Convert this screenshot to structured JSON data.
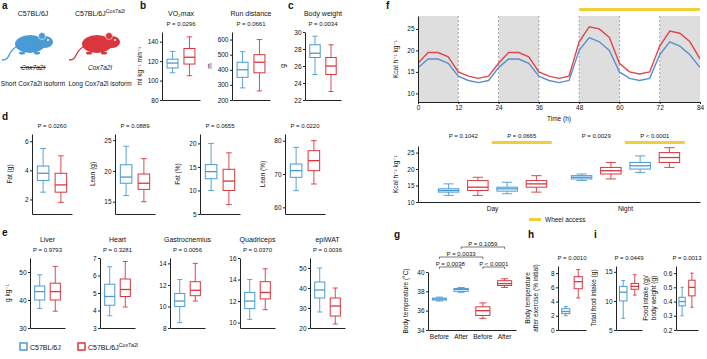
{
  "figure": {
    "panel_labels": [
      "a",
      "b",
      "c",
      "d",
      "e",
      "f",
      "g",
      "h",
      "i"
    ],
    "legend": [
      {
        "name": "C57BL/6J",
        "color": "#4a9ad4"
      },
      {
        "name": "C57BL/6J",
        "superscript": "Cox7a2l",
        "color": "#d9363e"
      }
    ],
    "diagram": [
      {
        "strain": "C57BL/6J",
        "gene": "Cox7a2l",
        "deleted": true,
        "isoform": "Short Cox7a2l isoform",
        "color": "#4a9ad4"
      },
      {
        "strain": "C57BL/6J",
        "superscript": "Cox7a2l",
        "gene": "Cox7a2l",
        "deleted": false,
        "isoform": "Long Cox7a2l isoform",
        "color": "#d9363e"
      }
    ]
  },
  "chart_data": [
    {
      "type": "box",
      "title": "VO₂max",
      "y_label": "ml kg⁻¹ min⁻¹",
      "p_value": "P = 0.0296",
      "ylim": [
        80,
        150
      ],
      "yticks": [
        80,
        100,
        120,
        140
      ],
      "colors": [
        "#4a9ad4",
        "#d9363e"
      ],
      "boxes": [
        {
          "min": 108,
          "q1": 113,
          "median": 118,
          "q3": 122,
          "max": 130
        },
        {
          "min": 105,
          "q1": 117,
          "median": 124,
          "q3": 133,
          "max": 145
        }
      ]
    },
    {
      "type": "box",
      "title": "Run distance",
      "y_label": "m",
      "p_value": "P = 0.0661",
      "ylim": [
        200,
        650
      ],
      "yticks": [
        200,
        300,
        400,
        500,
        600
      ],
      "colors": [
        "#4a9ad4",
        "#d9363e"
      ],
      "boxes": [
        {
          "min": 280,
          "q1": 350,
          "median": 400,
          "q3": 450,
          "max": 520
        },
        {
          "min": 260,
          "q1": 380,
          "median": 450,
          "q3": 500,
          "max": 600
        }
      ]
    },
    {
      "type": "box",
      "title": "Body weight",
      "y_label": "g",
      "p_value": "P = 0.0034",
      "ylim": [
        22,
        30
      ],
      "yticks": [
        22,
        24,
        26,
        28,
        30
      ],
      "colors": [
        "#4a9ad4",
        "#d9363e"
      ],
      "boxes": [
        {
          "min": 25,
          "q1": 27,
          "median": 27.5,
          "q3": 28.5,
          "max": 29.5
        },
        {
          "min": 23,
          "q1": 25,
          "median": 26,
          "q3": 27,
          "max": 28.5
        }
      ]
    },
    {
      "type": "box",
      "y_label": "Fat (g)",
      "p_value": "P = 0.0260",
      "ylim": [
        1,
        6.5
      ],
      "yticks": [
        2,
        4,
        6
      ],
      "colors": [
        "#4a9ad4",
        "#d9363e"
      ],
      "boxes": [
        {
          "min": 2.5,
          "q1": 3.3,
          "median": 3.8,
          "q3": 4.3,
          "max": 5.5
        },
        {
          "min": 1.8,
          "q1": 2.5,
          "median": 3,
          "q3": 3.8,
          "max": 5
        }
      ]
    },
    {
      "type": "box",
      "y_label": "Lean (g)",
      "p_value": "P = 0.0889",
      "ylim": [
        13,
        26
      ],
      "yticks": [
        15,
        20,
        25
      ],
      "colors": [
        "#4a9ad4",
        "#d9363e"
      ],
      "boxes": [
        {
          "min": 16,
          "q1": 18,
          "median": 19,
          "q3": 21,
          "max": 24
        },
        {
          "min": 15,
          "q1": 17,
          "median": 18,
          "q3": 19.5,
          "max": 22
        }
      ]
    },
    {
      "type": "box",
      "y_label": "Fat (%)",
      "p_value": "P = 0.0655",
      "ylim": [
        5,
        22
      ],
      "yticks": [
        5,
        10,
        15,
        20
      ],
      "colors": [
        "#4a9ad4",
        "#d9363e"
      ],
      "boxes": [
        {
          "min": 10,
          "q1": 12.5,
          "median": 14,
          "q3": 15.5,
          "max": 20
        },
        {
          "min": 7,
          "q1": 10,
          "median": 12,
          "q3": 14.5,
          "max": 18
        }
      ]
    },
    {
      "type": "box",
      "y_label": "Lean (%)",
      "p_value": "P = 0.0220",
      "ylim": [
        58,
        82
      ],
      "yticks": [
        60,
        70,
        80
      ],
      "colors": [
        "#4a9ad4",
        "#d9363e"
      ],
      "boxes": [
        {
          "min": 65,
          "q1": 69,
          "median": 71,
          "q3": 73,
          "max": 78
        },
        {
          "min": 67,
          "q1": 71,
          "median": 74,
          "q3": 77,
          "max": 80
        }
      ]
    },
    {
      "type": "box",
      "title": "Liver",
      "y_label": "g kg⁻¹",
      "p_value": "P = 0.9793",
      "ylim": [
        30,
        55
      ],
      "yticks": [
        30,
        40,
        50
      ],
      "colors": [
        "#4a9ad4",
        "#d9363e"
      ],
      "boxes": [
        {
          "min": 37,
          "q1": 40,
          "median": 43,
          "q3": 45,
          "max": 49
        },
        {
          "min": 36,
          "q1": 40,
          "median": 43,
          "q3": 46,
          "max": 52
        }
      ]
    },
    {
      "type": "box",
      "title": "Heart",
      "p_value": "P = 0.3281",
      "ylim": [
        3,
        7
      ],
      "yticks": [
        3,
        4,
        5,
        6,
        7
      ],
      "colors": [
        "#4a9ad4",
        "#d9363e"
      ],
      "boxes": [
        {
          "min": 3.7,
          "q1": 4.3,
          "median": 4.8,
          "q3": 5.5,
          "max": 6.5
        },
        {
          "min": 4.2,
          "q1": 4.8,
          "median": 5.2,
          "q3": 5.8,
          "max": 6.8
        }
      ]
    },
    {
      "type": "box",
      "title": "Gastrocnemius",
      "p_value": "P = 0.0056",
      "ylim": [
        8,
        14.5
      ],
      "yticks": [
        8,
        10,
        12,
        14
      ],
      "colors": [
        "#4a9ad4",
        "#d9363e"
      ],
      "boxes": [
        {
          "min": 8.5,
          "q1": 10,
          "median": 10.5,
          "q3": 11.2,
          "max": 12.5
        },
        {
          "min": 10.5,
          "q1": 11,
          "median": 11.5,
          "q3": 12.3,
          "max": 14
        }
      ]
    },
    {
      "type": "box",
      "title": "Quadriceps",
      "p_value": "P = 0.0370",
      "ylim": [
        9.5,
        16
      ],
      "yticks": [
        10,
        12,
        14,
        16
      ],
      "colors": [
        "#4a9ad4",
        "#d9363e"
      ],
      "boxes": [
        {
          "min": 10.3,
          "q1": 11.3,
          "median": 12,
          "q3": 12.8,
          "max": 14
        },
        {
          "min": 11.2,
          "q1": 12.2,
          "median": 12.8,
          "q3": 13.8,
          "max": 15
        }
      ]
    },
    {
      "type": "box",
      "title": "epiWAT",
      "p_value": "P = 0.0036",
      "ylim": [
        20,
        55
      ],
      "yticks": [
        20,
        30,
        40,
        50
      ],
      "colors": [
        "#4a9ad4",
        "#d9363e"
      ],
      "boxes": [
        {
          "min": 28,
          "q1": 35,
          "median": 39,
          "q3": 43,
          "max": 50
        },
        {
          "min": 22,
          "q1": 26,
          "median": 31,
          "q3": 35,
          "max": 40
        }
      ]
    },
    {
      "type": "line",
      "y_label": "Kcal h⁻¹ kg⁻¹",
      "x_label": "Time (h)",
      "xlim": [
        0,
        84
      ],
      "xticks": [
        0,
        12,
        24,
        36,
        48,
        60,
        72,
        84
      ],
      "ylim": [
        8,
        28
      ],
      "yticks": [
        10,
        15,
        20,
        25
      ],
      "x": [
        0,
        3,
        6,
        9,
        12,
        15,
        18,
        21,
        24,
        27,
        30,
        33,
        36,
        39,
        42,
        45,
        48,
        51,
        54,
        57,
        60,
        63,
        66,
        69,
        72,
        75,
        78,
        81,
        84
      ],
      "series": [
        {
          "color": "#5b8fd0",
          "values": [
            16,
            18,
            18,
            17,
            14,
            13,
            12.5,
            13,
            16,
            18,
            18,
            17,
            14,
            13,
            12.5,
            13,
            20,
            23,
            22,
            20,
            15,
            13.5,
            13,
            13.5,
            19,
            22,
            21,
            19,
            16
          ]
        },
        {
          "color": "#e0464c",
          "values": [
            17,
            19.5,
            19.5,
            18.5,
            15,
            14,
            13.5,
            14,
            17,
            19.5,
            19.5,
            18.5,
            15,
            14,
            13.5,
            14,
            22,
            25.5,
            25,
            23,
            17,
            15,
            14.5,
            15,
            21,
            24.5,
            24,
            22,
            18
          ]
        }
      ],
      "night": [
        [
          0,
          12
        ],
        [
          24,
          36
        ],
        [
          48,
          60
        ],
        [
          72,
          84
        ]
      ],
      "wheel_access": {
        "color": "#f2cf3a",
        "x": [
          48,
          84
        ]
      }
    },
    {
      "type": "box",
      "y_label": "Kcal h⁻¹ kg⁻¹",
      "ylim": [
        10,
        27
      ],
      "yticks": [
        10,
        15,
        20,
        25
      ],
      "categories": [
        "Day",
        "Night"
      ],
      "colors": [
        "#4a9ad4",
        "#d9363e",
        "#4a9ad4",
        "#d9363e",
        "#4a9ad4",
        "#d9363e",
        "#4a9ad4",
        "#d9363e"
      ],
      "boxes": [
        {
          "min": 12,
          "q1": 13,
          "median": 13.5,
          "q3": 14,
          "max": 15.5
        },
        {
          "min": 12,
          "q1": 13.5,
          "median": 14.5,
          "q3": 16.5,
          "max": 17.5
        },
        {
          "min": 12.5,
          "q1": 13.3,
          "median": 14,
          "q3": 14.5,
          "max": 16
        },
        {
          "min": 13,
          "q1": 14.5,
          "median": 15.5,
          "q3": 16.5,
          "max": 18
        },
        {
          "min": 16.5,
          "q1": 17,
          "median": 17.5,
          "q3": 18,
          "max": 18.5
        },
        {
          "min": 17,
          "q1": 18.5,
          "median": 19.5,
          "q3": 20.5,
          "max": 22
        },
        {
          "min": 19,
          "q1": 20,
          "median": 21,
          "q3": 22,
          "max": 24
        },
        {
          "min": 20.5,
          "q1": 22,
          "median": 23.5,
          "q3": 25,
          "max": 26.5
        }
      ],
      "p_values": [
        "P = 0.1042",
        "P = 0.0665",
        "P = 0.0029",
        "P < 0.0001"
      ],
      "wheel_access": {
        "label": "Wheel access",
        "color": "#f2cf3a",
        "boxes": [
          2,
          3,
          6,
          7
        ]
      }
    },
    {
      "type": "box",
      "y_label": "Body temperature (°C)",
      "ylim": [
        34,
        40
      ],
      "yticks": [
        34,
        36,
        38,
        40
      ],
      "categories": [
        "Before",
        "After",
        "Before",
        "After"
      ],
      "colors": [
        "#4a9ad4",
        "#4a9ad4",
        "#d9363e",
        "#d9363e"
      ],
      "boxes": [
        {
          "min": 37,
          "q1": 37.1,
          "median": 37.2,
          "q3": 37.3,
          "max": 37.4
        },
        {
          "min": 37.9,
          "q1": 38,
          "median": 38.2,
          "q3": 38.3,
          "max": 38.4
        },
        {
          "min": 35.2,
          "q1": 35.5,
          "median": 36,
          "q3": 36.4,
          "max": 36.8
        },
        {
          "min": 38.4,
          "q1": 38.6,
          "median": 38.8,
          "q3": 39.1,
          "max": 39.3
        }
      ],
      "comparisons": [
        {
          "from": 0,
          "to": 1,
          "label": "P = 0.0038"
        },
        {
          "from": 0,
          "to": 2,
          "label": "P = 0.0033"
        },
        {
          "from": 1,
          "to": 3,
          "label": "P = 0.1059"
        },
        {
          "from": 2,
          "to": 3,
          "label": "P < 0.0001"
        }
      ]
    },
    {
      "type": "box",
      "y_label": [
        "Body temperature",
        "after exercise (% initial)"
      ],
      "p_value": "P = 0.0010",
      "ylim": [
        0,
        9
      ],
      "yticks": [
        0,
        2,
        4,
        6,
        8
      ],
      "colors": [
        "#4a9ad4",
        "#d9363e"
      ],
      "boxes": [
        {
          "min": 2,
          "q1": 2.3,
          "median": 2.6,
          "q3": 3,
          "max": 3.3
        },
        {
          "min": 4.5,
          "q1": 5.8,
          "median": 6.8,
          "q3": 7.5,
          "max": 8.5
        }
      ]
    },
    {
      "type": "box",
      "y_label": "Total food intake (g)",
      "p_value": "P = 0.0449",
      "ylim": [
        5,
        16
      ],
      "yticks": [
        5,
        10,
        15
      ],
      "colors": [
        "#4a9ad4",
        "#d9363e"
      ],
      "boxes": [
        {
          "min": 7,
          "q1": 10,
          "median": 11.5,
          "q3": 12.5,
          "max": 13.5
        },
        {
          "min": 11,
          "q1": 12,
          "median": 12.5,
          "q3": 13,
          "max": 14.5
        }
      ]
    },
    {
      "type": "box",
      "y_label": [
        "Food intake (g)/",
        "body weight (g)"
      ],
      "p_value": "P = 0.0013",
      "ylim": [
        0.2,
        0.65
      ],
      "yticks": [
        0.2,
        0.3,
        0.4,
        0.5,
        0.6
      ],
      "colors": [
        "#4a9ad4",
        "#d9363e"
      ],
      "boxes": [
        {
          "min": 0.3,
          "q1": 0.37,
          "median": 0.4,
          "q3": 0.43,
          "max": 0.5
        },
        {
          "min": 0.36,
          "q1": 0.44,
          "median": 0.5,
          "q3": 0.55,
          "max": 0.6
        }
      ]
    }
  ]
}
